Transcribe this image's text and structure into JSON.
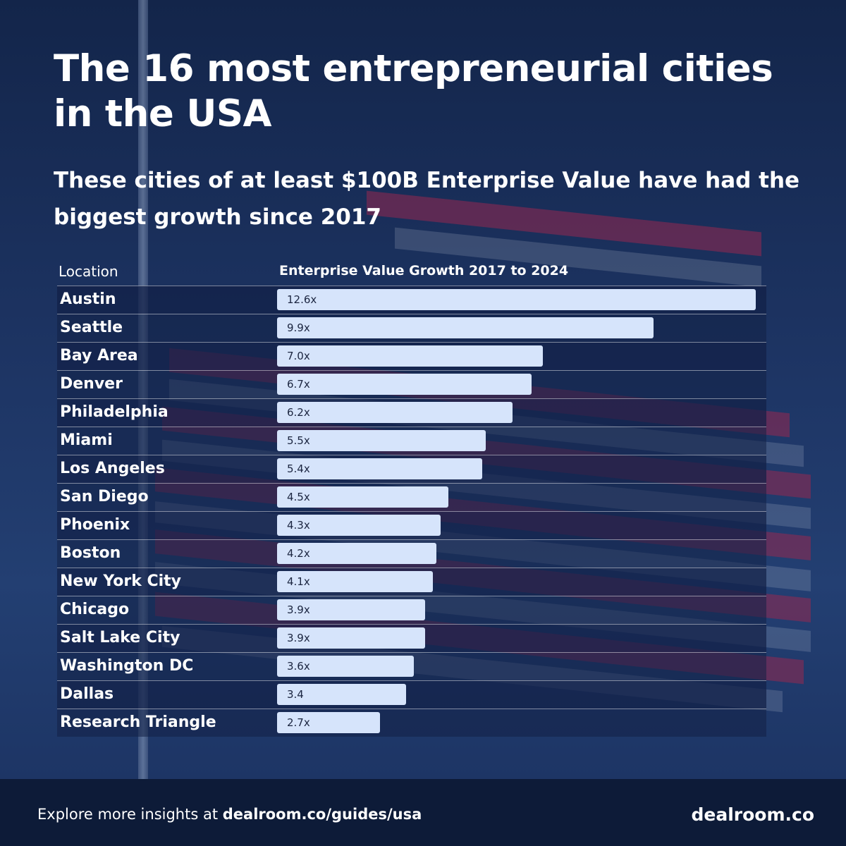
{
  "title": "The 16 most entrepreneurial cities in the USA",
  "subtitle": "These cities of at least $100B Enterprise Value have had the biggest growth since 2017",
  "table": {
    "col_location": "Location",
    "col_value": "Enterprise Value Growth 2017 to 2024"
  },
  "chart_data": {
    "type": "bar",
    "orientation": "horizontal",
    "title": "The 16 most entrepreneurial cities in the USA",
    "subtitle": "These cities of at least $100B Enterprise Value have had the biggest growth since 2017",
    "xlabel": "Enterprise Value Growth 2017 to 2024",
    "ylabel": "Location",
    "categories": [
      "Austin",
      "Seattle",
      "Bay Area",
      "Denver",
      "Philadelphia",
      "Miami",
      "Los Angeles",
      "San Diego",
      "Phoenix",
      "Boston",
      "New York City",
      "Chicago",
      "Salt Lake City",
      "Washington DC",
      "Dallas",
      "Research Triangle"
    ],
    "values": [
      12.6,
      9.9,
      7.0,
      6.7,
      6.2,
      5.5,
      5.4,
      4.5,
      4.3,
      4.2,
      4.1,
      3.9,
      3.9,
      3.6,
      3.4,
      2.7
    ],
    "labels": [
      "12.6x",
      "9.9x",
      "7.0x",
      "6.7x",
      "6.2x",
      "5.5x",
      "5.4x",
      "4.5x",
      "4.3x",
      "4.2x",
      "4.1x",
      "3.9x",
      "3.9x",
      "3.6x",
      "3.4",
      "2.7x"
    ],
    "xlim": [
      0,
      12.6
    ],
    "bar_color": "#d6e4fb"
  },
  "footer": {
    "prefix": "Explore more insights at ",
    "link": "dealroom.co/guides/usa",
    "brand": "dealroom.co"
  }
}
